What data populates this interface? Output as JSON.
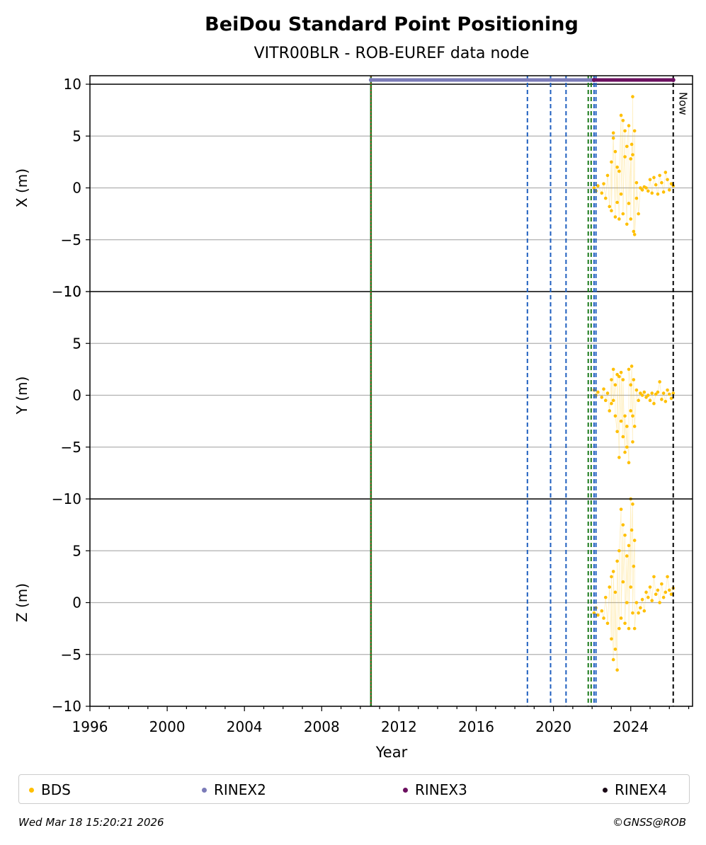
{
  "title": "BeiDou Standard Point Positioning",
  "subtitle": "VITR00BLR - ROB-EUREF data node",
  "now_label": "Now",
  "footer": {
    "timestamp": "Wed Mar 18 15:20:21 2026",
    "credit": "©GNSS@ROB"
  },
  "legend": [
    {
      "label": "BDS",
      "color": "#FFBF00"
    },
    {
      "label": "RINEX2",
      "color": "#7B7BB8"
    },
    {
      "label": "RINEX3",
      "color": "#6B0F5F"
    },
    {
      "label": "RINEX4",
      "color": "#1A0A16"
    }
  ],
  "chart_data": {
    "type": "scatter",
    "xlabel": "Year",
    "xlim": [
      1996,
      2027.2
    ],
    "xticks": [
      "1996",
      "2000",
      "2004",
      "2008",
      "2012",
      "2016",
      "2020",
      "2024"
    ],
    "grid": "horizontal",
    "legend_position": "bottom",
    "panels": [
      {
        "name": "X",
        "ylabel": "X (m)",
        "ylim": [
          -10,
          10
        ],
        "yticks": [
          "−10",
          "−5",
          "0",
          "5",
          "10"
        ],
        "series": {
          "name": "BDS",
          "color": "#FFBF00",
          "points": [
            [
              2022.1,
              0.0
            ],
            [
              2022.2,
              -0.3
            ],
            [
              2022.3,
              0.2
            ],
            [
              2022.5,
              -0.5
            ],
            [
              2022.6,
              0.4
            ],
            [
              2022.7,
              -1.0
            ],
            [
              2022.8,
              1.2
            ],
            [
              2022.9,
              -1.8
            ],
            [
              2023.0,
              2.5
            ],
            [
              2023.0,
              -2.2
            ],
            [
              2023.1,
              5.3
            ],
            [
              2023.1,
              4.8
            ],
            [
              2023.2,
              -2.8
            ],
            [
              2023.2,
              3.5
            ],
            [
              2023.3,
              -1.4
            ],
            [
              2023.3,
              2.0
            ],
            [
              2023.4,
              -3.0
            ],
            [
              2023.4,
              1.6
            ],
            [
              2023.5,
              7.0
            ],
            [
              2023.5,
              -0.6
            ],
            [
              2023.6,
              6.5
            ],
            [
              2023.6,
              -2.5
            ],
            [
              2023.7,
              5.5
            ],
            [
              2023.7,
              3.0
            ],
            [
              2023.8,
              -3.5
            ],
            [
              2023.8,
              4.0
            ],
            [
              2023.9,
              6.0
            ],
            [
              2023.9,
              -1.5
            ],
            [
              2024.0,
              2.8
            ],
            [
              2024.0,
              -3.0
            ],
            [
              2024.05,
              4.2
            ],
            [
              2024.1,
              3.2
            ],
            [
              2024.1,
              8.8
            ],
            [
              2024.15,
              -4.2
            ],
            [
              2024.2,
              5.5
            ],
            [
              2024.2,
              -4.5
            ],
            [
              2024.3,
              -1.0
            ],
            [
              2024.3,
              0.5
            ],
            [
              2024.4,
              -2.5
            ],
            [
              2024.5,
              0.0
            ],
            [
              2024.6,
              -0.2
            ],
            [
              2024.7,
              0.1
            ],
            [
              2024.8,
              0.0
            ],
            [
              2024.9,
              -0.3
            ],
            [
              2025.0,
              0.8
            ],
            [
              2025.1,
              -0.5
            ],
            [
              2025.2,
              1.0
            ],
            [
              2025.3,
              0.3
            ],
            [
              2025.4,
              -0.6
            ],
            [
              2025.5,
              1.2
            ],
            [
              2025.6,
              0.5
            ],
            [
              2025.7,
              -0.4
            ],
            [
              2025.8,
              1.5
            ],
            [
              2025.9,
              0.8
            ],
            [
              2026.0,
              -0.2
            ],
            [
              2026.1,
              0.4
            ],
            [
              2026.2,
              0.2
            ]
          ]
        }
      },
      {
        "name": "Y",
        "ylabel": "Y (m)",
        "ylim": [
          -10,
          10
        ],
        "yticks": [
          "−10",
          "−5",
          "0",
          "5",
          "10"
        ],
        "series": {
          "name": "BDS",
          "color": "#FFBF00",
          "points": [
            [
              2022.1,
              0.5
            ],
            [
              2022.2,
              0.0
            ],
            [
              2022.3,
              0.3
            ],
            [
              2022.5,
              -0.2
            ],
            [
              2022.6,
              0.6
            ],
            [
              2022.7,
              -0.5
            ],
            [
              2022.8,
              0.2
            ],
            [
              2022.9,
              -1.5
            ],
            [
              2023.0,
              1.5
            ],
            [
              2023.0,
              -0.8
            ],
            [
              2023.1,
              2.5
            ],
            [
              2023.1,
              -0.5
            ],
            [
              2023.2,
              1.0
            ],
            [
              2023.2,
              -2.0
            ],
            [
              2023.3,
              -3.5
            ],
            [
              2023.3,
              2.0
            ],
            [
              2023.4,
              -6.0
            ],
            [
              2023.4,
              1.8
            ],
            [
              2023.5,
              -2.5
            ],
            [
              2023.5,
              2.2
            ],
            [
              2023.6,
              -4.0
            ],
            [
              2023.6,
              1.5
            ],
            [
              2023.7,
              -5.5
            ],
            [
              2023.7,
              -2.0
            ],
            [
              2023.8,
              -5.0
            ],
            [
              2023.8,
              -3.0
            ],
            [
              2023.9,
              -6.5
            ],
            [
              2023.9,
              2.5
            ],
            [
              2024.0,
              1.0
            ],
            [
              2024.0,
              -1.5
            ],
            [
              2024.05,
              2.8
            ],
            [
              2024.1,
              -4.5
            ],
            [
              2024.1,
              -2.0
            ],
            [
              2024.15,
              1.5
            ],
            [
              2024.2,
              -3.0
            ],
            [
              2024.3,
              0.5
            ],
            [
              2024.4,
              -0.5
            ],
            [
              2024.5,
              0.2
            ],
            [
              2024.6,
              0.0
            ],
            [
              2024.7,
              0.3
            ],
            [
              2024.8,
              -0.2
            ],
            [
              2024.9,
              0.0
            ],
            [
              2025.0,
              -0.5
            ],
            [
              2025.1,
              0.2
            ],
            [
              2025.2,
              -0.8
            ],
            [
              2025.3,
              0.1
            ],
            [
              2025.4,
              0.3
            ],
            [
              2025.5,
              1.3
            ],
            [
              2025.6,
              -0.4
            ],
            [
              2025.7,
              0.2
            ],
            [
              2025.8,
              -0.6
            ],
            [
              2025.9,
              0.5
            ],
            [
              2026.0,
              0.1
            ],
            [
              2026.1,
              -0.3
            ],
            [
              2026.2,
              0.2
            ]
          ]
        }
      },
      {
        "name": "Z",
        "ylabel": "Z (m)",
        "ylim": [
          -10,
          10
        ],
        "yticks": [
          "−10",
          "−5",
          "0",
          "5"
        ],
        "series": {
          "name": "BDS",
          "color": "#FFBF00",
          "points": [
            [
              2022.1,
              -1.0
            ],
            [
              2022.2,
              -0.5
            ],
            [
              2022.3,
              -1.2
            ],
            [
              2022.5,
              -0.8
            ],
            [
              2022.6,
              -1.5
            ],
            [
              2022.7,
              0.5
            ],
            [
              2022.8,
              -2.0
            ],
            [
              2022.9,
              1.5
            ],
            [
              2023.0,
              -3.5
            ],
            [
              2023.0,
              2.5
            ],
            [
              2023.1,
              -5.5
            ],
            [
              2023.1,
              3.0
            ],
            [
              2023.2,
              -4.5
            ],
            [
              2023.2,
              1.0
            ],
            [
              2023.3,
              -6.5
            ],
            [
              2023.3,
              4.0
            ],
            [
              2023.4,
              -2.5
            ],
            [
              2023.4,
              5.0
            ],
            [
              2023.5,
              9.0
            ],
            [
              2023.5,
              -1.5
            ],
            [
              2023.6,
              7.5
            ],
            [
              2023.6,
              2.0
            ],
            [
              2023.7,
              6.5
            ],
            [
              2023.7,
              -2.0
            ],
            [
              2023.8,
              4.5
            ],
            [
              2023.8,
              0.0
            ],
            [
              2023.9,
              5.5
            ],
            [
              2023.9,
              -2.5
            ],
            [
              2024.0,
              10.0
            ],
            [
              2024.0,
              1.5
            ],
            [
              2024.05,
              7.0
            ],
            [
              2024.1,
              9.5
            ],
            [
              2024.1,
              -1.0
            ],
            [
              2024.15,
              3.5
            ],
            [
              2024.2,
              6.0
            ],
            [
              2024.2,
              -2.5
            ],
            [
              2024.3,
              0.0
            ],
            [
              2024.4,
              -1.0
            ],
            [
              2024.5,
              -0.5
            ],
            [
              2024.6,
              0.3
            ],
            [
              2024.7,
              -0.8
            ],
            [
              2024.8,
              1.0
            ],
            [
              2024.9,
              0.5
            ],
            [
              2025.0,
              1.5
            ],
            [
              2025.1,
              0.2
            ],
            [
              2025.2,
              2.5
            ],
            [
              2025.3,
              0.8
            ],
            [
              2025.4,
              1.2
            ],
            [
              2025.5,
              0.0
            ],
            [
              2025.6,
              1.8
            ],
            [
              2025.7,
              0.5
            ],
            [
              2025.8,
              1.0
            ],
            [
              2025.9,
              2.5
            ],
            [
              2026.0,
              1.2
            ],
            [
              2026.1,
              0.8
            ],
            [
              2026.2,
              1.4
            ]
          ]
        }
      }
    ],
    "event_lines": [
      {
        "x": 2010.55,
        "style": "solid",
        "colors": [
          "#1a7a1a",
          "#d22020"
        ]
      },
      {
        "x": 2018.65,
        "style": "dashed",
        "colors": [
          "#1f5fbf"
        ]
      },
      {
        "x": 2019.85,
        "style": "dashed",
        "colors": [
          "#1f5fbf"
        ]
      },
      {
        "x": 2020.65,
        "style": "dashed",
        "colors": [
          "#1f5fbf"
        ]
      },
      {
        "x": 2021.8,
        "style": "dashed",
        "colors": [
          "#1a7a1a"
        ]
      },
      {
        "x": 2021.95,
        "style": "dashed",
        "colors": [
          "#1a7a1a"
        ]
      },
      {
        "x": 2022.1,
        "style": "dashed",
        "colors": [
          "#1f5fbf"
        ]
      },
      {
        "x": 2022.2,
        "style": "dashed",
        "colors": [
          "#1f5fbf"
        ]
      },
      {
        "x": 2026.2,
        "style": "dashed",
        "colors": [
          "#000000"
        ],
        "label": "Now"
      }
    ],
    "rinex_bars": [
      {
        "name": "RINEX2",
        "start": 2010.55,
        "end": 2021.95,
        "color": "#7B7BB8"
      },
      {
        "name": "RINEX3",
        "start": 2022.1,
        "end": 2026.2,
        "color": "#6B0F5F"
      }
    ]
  }
}
